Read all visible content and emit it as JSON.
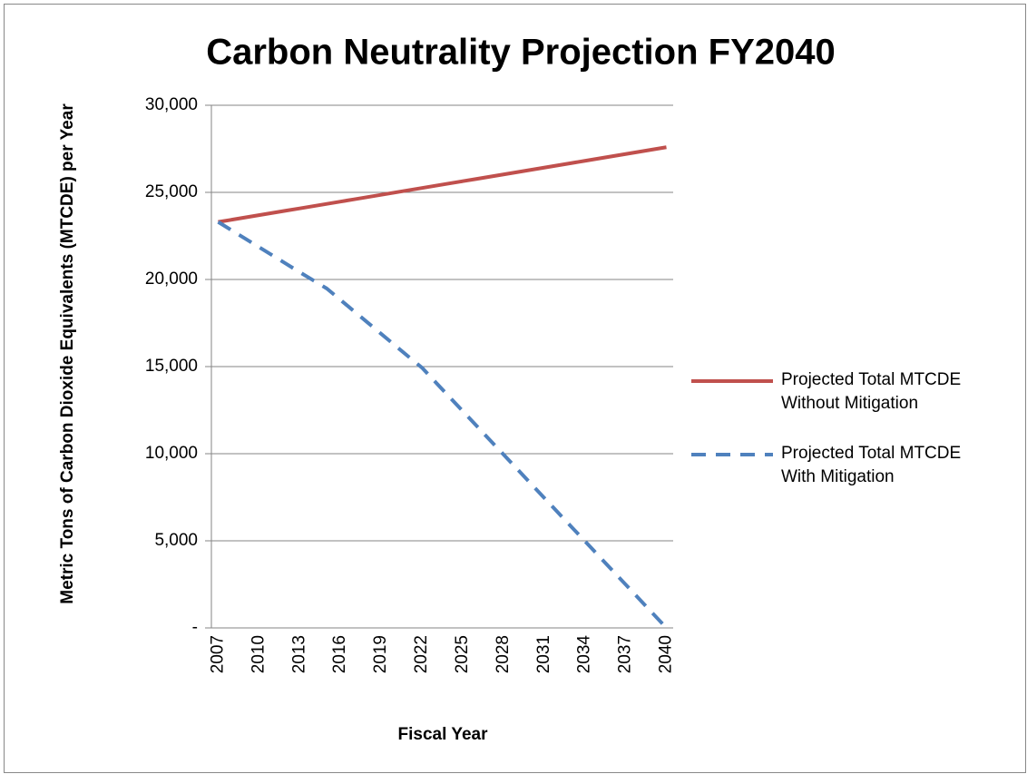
{
  "chart_data": {
    "type": "line",
    "title": "Carbon Neutrality Projection FY2040",
    "x_label": "Fiscal Year",
    "y_label": "Metric Tons of Carbon Dioxide Equivalents (MTCDE) per Year",
    "categories": [
      "2007",
      null,
      null,
      "2010",
      null,
      null,
      "2013",
      null,
      null,
      "2016",
      null,
      null,
      "2019",
      null,
      null,
      "2022",
      null,
      null,
      "2025",
      null,
      null,
      "2028",
      null,
      null,
      "2031",
      null,
      null,
      "2034",
      null,
      null,
      "2037",
      null,
      null,
      "2040"
    ],
    "series": [
      {
        "name": "Projected Total MTCDE Without Mitigation",
        "color": "#c0504d",
        "dash": false,
        "values": [
          23300,
          23430,
          23560,
          23690,
          23820,
          23950,
          24080,
          24210,
          24340,
          24470,
          24600,
          24730,
          24860,
          24990,
          25120,
          25250,
          25380,
          25510,
          25640,
          25770,
          25900,
          26030,
          26160,
          26290,
          26420,
          26550,
          26680,
          26810,
          26940,
          27070,
          27200,
          27330,
          27460,
          27590
        ]
      },
      {
        "name": "Projected Total MTCDE With Mitigation",
        "color": "#4f81bd",
        "dash": true,
        "values": [
          23300,
          22820,
          22340,
          21860,
          21380,
          20900,
          20420,
          19950,
          19480,
          18830,
          18180,
          17530,
          16880,
          16230,
          15580,
          14940,
          14110,
          13280,
          12450,
          11620,
          10790,
          9960,
          9130,
          8300,
          7470,
          6640,
          5810,
          4980,
          4150,
          3320,
          2490,
          1660,
          830,
          0
        ]
      }
    ],
    "ylim": [
      0,
      30000
    ],
    "yticks": [
      {
        "value": 0,
        "label": "-"
      },
      {
        "value": 5000,
        "label": "5,000"
      },
      {
        "value": 10000,
        "label": "10,000"
      },
      {
        "value": 15000,
        "label": "15,000"
      },
      {
        "value": 20000,
        "label": "20,000"
      },
      {
        "value": 25000,
        "label": "25,000"
      },
      {
        "value": 30000,
        "label": "30,000"
      }
    ],
    "grid": true,
    "legend": "right"
  }
}
